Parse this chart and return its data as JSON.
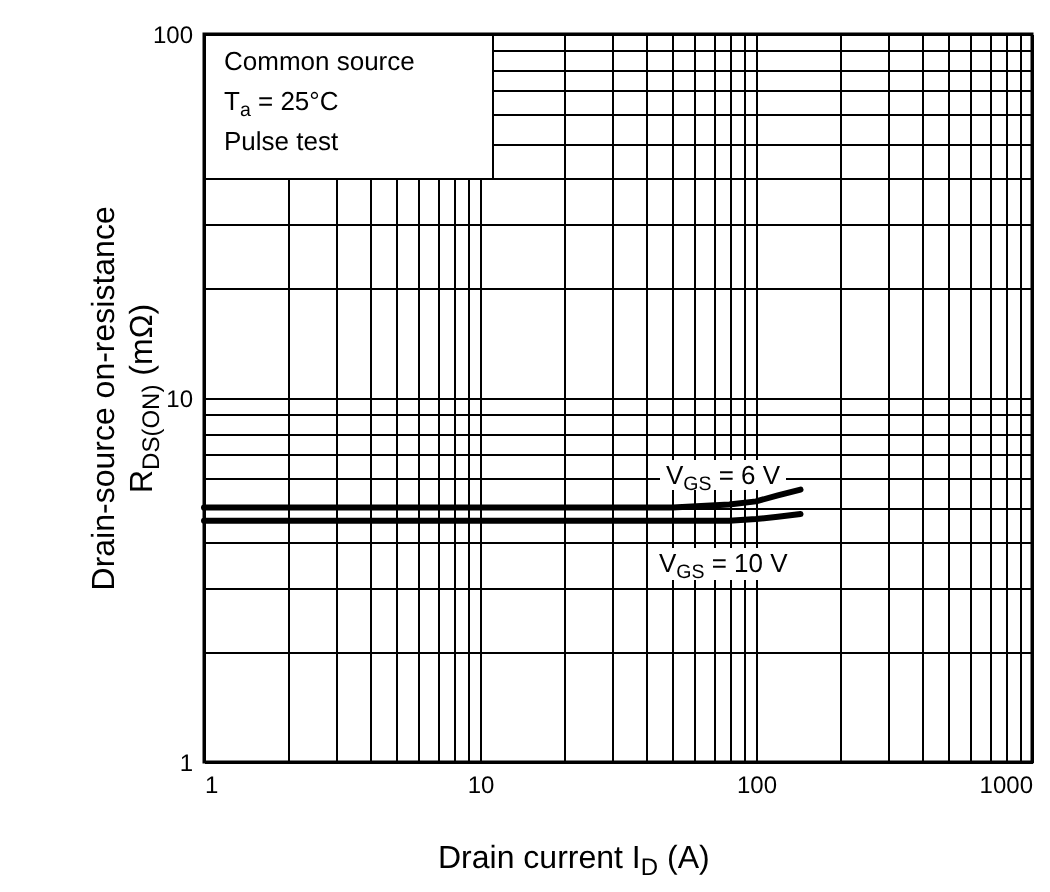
{
  "chart_data": {
    "type": "line",
    "xlabel": "Drain current I$_{D}$ (A)",
    "ylabel": "Drain-source on-resistance R$_{DS(ON)}$ (mΩ)",
    "annotations": [
      "Common source",
      "T$_{a}$ = 25°C",
      "Pulse test"
    ],
    "series": [
      {
        "name": "V$_{GS}$ = 6 V",
        "color": "#000000",
        "x": [
          1,
          10,
          50,
          80,
          100,
          120,
          145
        ],
        "values": [
          5.0,
          5.0,
          5.0,
          5.1,
          5.2,
          5.4,
          5.6
        ]
      },
      {
        "name": "V$_{GS}$ = 10 V",
        "color": "#000000",
        "x": [
          1,
          10,
          50,
          80,
          100,
          120,
          145
        ],
        "values": [
          4.6,
          4.6,
          4.6,
          4.6,
          4.65,
          4.72,
          4.8
        ]
      }
    ],
    "log": "xy",
    "xlim": [
      1,
      1000
    ],
    "ylim": [
      1,
      100
    ],
    "xticks": [
      1,
      {
        "value": 2,
        "label": null
      },
      {
        "value": 3,
        "label": null
      },
      {
        "value": 4,
        "label": null
      },
      {
        "value": 5,
        "label": null
      },
      {
        "value": 6,
        "label": null
      },
      {
        "value": 7,
        "label": null
      },
      {
        "value": 8,
        "label": null
      },
      {
        "value": 9,
        "label": null
      },
      10,
      {
        "value": 20,
        "label": null
      },
      {
        "value": 30,
        "label": null
      },
      {
        "value": 40,
        "label": null
      },
      {
        "value": 50,
        "label": null
      },
      {
        "value": 60,
        "label": null
      },
      {
        "value": 70,
        "label": null
      },
      {
        "value": 80,
        "label": null
      },
      {
        "value": 90,
        "label": null
      },
      100,
      {
        "value": 200,
        "label": null
      },
      {
        "value": 300,
        "label": null
      },
      {
        "value": 400,
        "label": null
      },
      {
        "value": 500,
        "label": null
      },
      {
        "value": 600,
        "label": null
      },
      {
        "value": 700,
        "label": null
      },
      {
        "value": 800,
        "label": null
      },
      {
        "value": 900,
        "label": null
      },
      1000
    ],
    "yticks": [
      1,
      {
        "value": 2,
        "label": null
      },
      {
        "value": 3,
        "label": null
      },
      {
        "value": 4,
        "label": null
      },
      {
        "value": 5,
        "label": null
      },
      {
        "value": 6,
        "label": null
      },
      {
        "value": 7,
        "label": null
      },
      {
        "value": 8,
        "label": null
      },
      {
        "value": 9,
        "label": null
      },
      10,
      {
        "value": 20,
        "label": null
      },
      {
        "value": 30,
        "label": null
      },
      {
        "value": 40,
        "label": null
      },
      {
        "value": 50,
        "label": null
      },
      {
        "value": 60,
        "label": null
      },
      {
        "value": 70,
        "label": null
      },
      {
        "value": 80,
        "label": null
      },
      {
        "value": 90,
        "label": null
      },
      100
    ],
    "grid": true,
    "marker": "none",
    "line_style": "solid"
  }
}
